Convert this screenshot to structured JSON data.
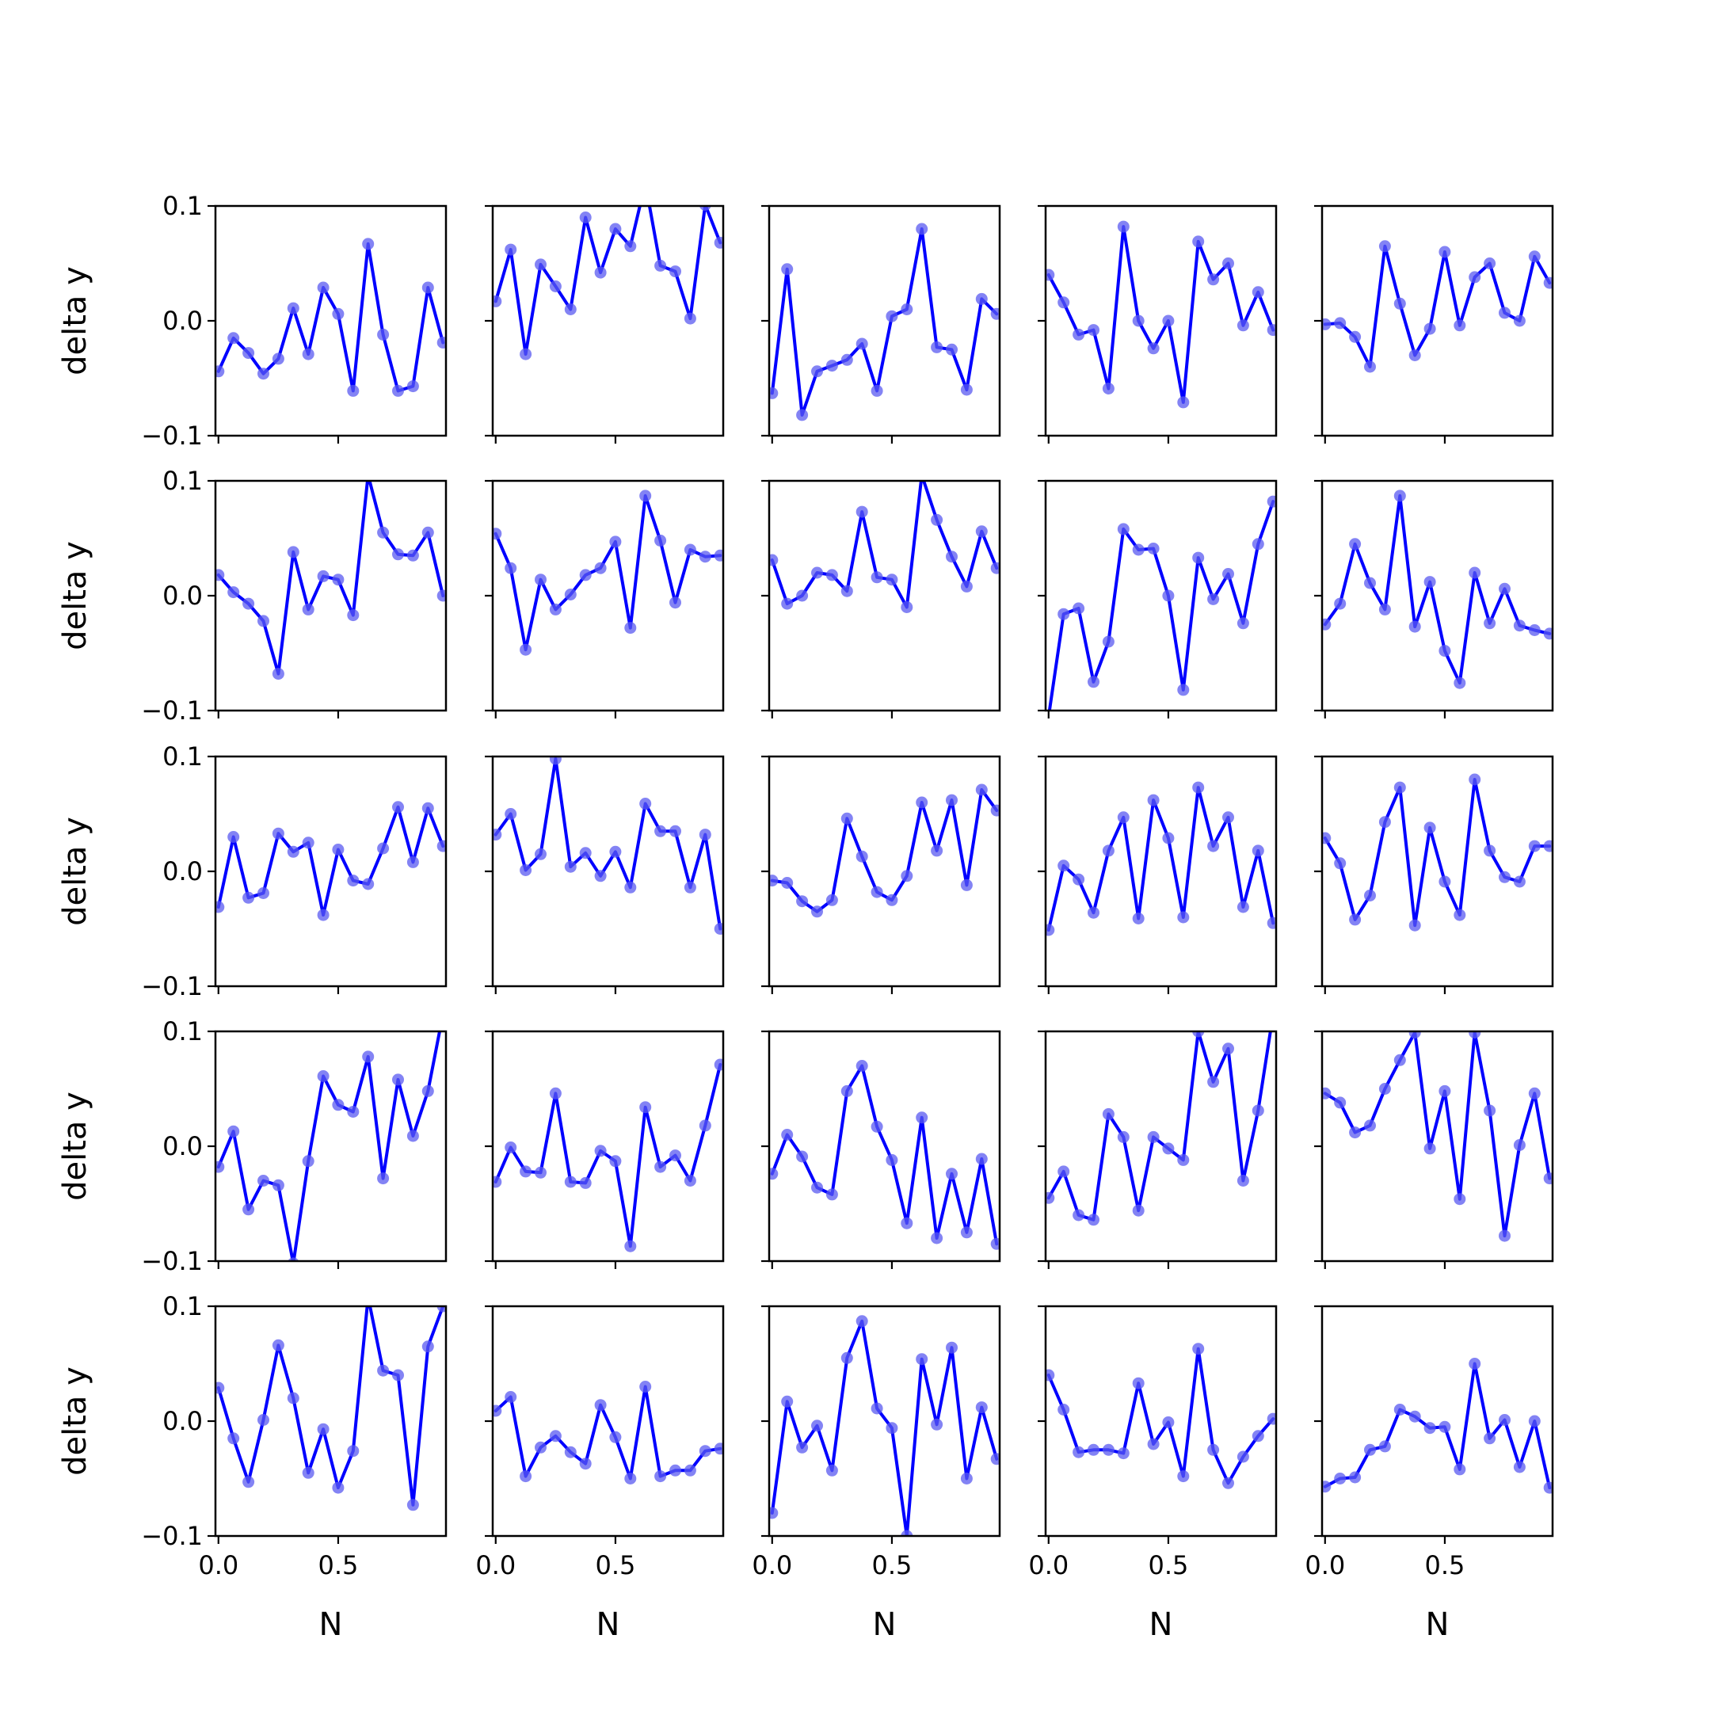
{
  "chart_data": {
    "type": "line",
    "layout": "5x5 grid of subplots, shared x and y axes",
    "series_color": "#0000ff",
    "marker_color": "#5a5af0",
    "grid": false,
    "ylabel": "delta y",
    "xlabel": "N",
    "ylim": [
      -0.1,
      0.1
    ],
    "yticks": [
      -0.1,
      0.0,
      0.1
    ],
    "ytick_labels": [
      "−0.1",
      "0.0",
      "0.1"
    ],
    "xlim": [
      -0.0125,
      0.95
    ],
    "xticks": [
      0.0,
      0.5
    ],
    "xtick_labels": [
      "0.0",
      "0.5"
    ],
    "x": [
      0.0,
      0.0625,
      0.125,
      0.1875,
      0.25,
      0.3125,
      0.375,
      0.4375,
      0.5,
      0.5625,
      0.625,
      0.6875,
      0.75,
      0.8125,
      0.875,
      0.9375
    ],
    "panels": [
      [
        -0.044,
        -0.015,
        -0.028,
        -0.046,
        -0.033,
        0.011,
        -0.029,
        0.029,
        0.006,
        -0.061,
        0.067,
        -0.012,
        -0.061,
        -0.057,
        0.029,
        -0.019
      ],
      [
        0.017,
        0.062,
        -0.029,
        0.049,
        0.03,
        0.01,
        0.09,
        0.042,
        0.08,
        0.065,
        0.12,
        0.048,
        0.043,
        0.002,
        0.101,
        0.068
      ],
      [
        -0.063,
        0.045,
        -0.082,
        -0.044,
        -0.039,
        -0.034,
        -0.02,
        -0.061,
        0.004,
        0.01,
        0.08,
        -0.023,
        -0.025,
        -0.06,
        0.019,
        0.006
      ],
      [
        0.04,
        0.016,
        -0.012,
        -0.008,
        -0.059,
        0.082,
        0.0,
        -0.024,
        0.0,
        -0.071,
        0.069,
        0.036,
        0.05,
        -0.004,
        0.025,
        -0.008
      ],
      [
        -0.003,
        -0.002,
        -0.014,
        -0.04,
        0.065,
        0.015,
        -0.03,
        -0.007,
        0.06,
        -0.004,
        0.038,
        0.05,
        0.007,
        0.0,
        0.056,
        0.033
      ],
      [
        0.018,
        0.003,
        -0.007,
        -0.022,
        -0.068,
        0.038,
        -0.012,
        0.017,
        0.014,
        -0.017,
        0.105,
        0.055,
        0.036,
        0.035,
        0.055,
        0.0
      ],
      [
        0.054,
        0.024,
        -0.047,
        0.014,
        -0.012,
        0.001,
        0.018,
        0.024,
        0.047,
        -0.028,
        0.087,
        0.048,
        -0.006,
        0.04,
        0.034,
        0.035
      ],
      [
        0.031,
        -0.007,
        0.0,
        0.02,
        0.018,
        0.004,
        0.073,
        0.016,
        0.014,
        -0.01,
        0.105,
        0.066,
        0.034,
        0.008,
        0.056,
        0.024
      ],
      [
        -0.105,
        -0.016,
        -0.011,
        -0.075,
        -0.04,
        0.058,
        0.04,
        0.041,
        0.0,
        -0.082,
        0.033,
        -0.003,
        0.019,
        -0.024,
        0.045,
        0.082
      ],
      [
        -0.025,
        -0.007,
        0.045,
        0.011,
        -0.012,
        0.087,
        -0.027,
        0.012,
        -0.048,
        -0.076,
        0.02,
        -0.024,
        0.006,
        -0.026,
        -0.03,
        -0.033
      ],
      [
        -0.031,
        0.03,
        -0.023,
        -0.019,
        0.033,
        0.017,
        0.025,
        -0.038,
        0.019,
        -0.008,
        -0.011,
        0.02,
        0.056,
        0.008,
        0.055,
        0.022
      ],
      [
        0.032,
        0.05,
        0.001,
        0.015,
        0.098,
        0.004,
        0.016,
        -0.004,
        0.017,
        -0.014,
        0.059,
        0.035,
        0.035,
        -0.014,
        0.032,
        -0.05
      ],
      [
        -0.008,
        -0.01,
        -0.026,
        -0.035,
        -0.025,
        0.046,
        0.013,
        -0.018,
        -0.025,
        -0.004,
        0.06,
        0.018,
        0.062,
        -0.012,
        0.071,
        0.053
      ],
      [
        -0.051,
        0.005,
        -0.007,
        -0.036,
        0.018,
        0.047,
        -0.041,
        0.062,
        0.029,
        -0.04,
        0.073,
        0.022,
        0.047,
        -0.031,
        0.018,
        -0.045
      ],
      [
        0.029,
        0.007,
        -0.042,
        -0.021,
        0.043,
        0.073,
        -0.047,
        0.038,
        -0.009,
        -0.038,
        0.08,
        0.018,
        -0.005,
        -0.009,
        0.022,
        0.022
      ],
      [
        -0.018,
        0.013,
        -0.055,
        -0.03,
        -0.034,
        -0.102,
        -0.013,
        0.061,
        0.036,
        0.03,
        0.078,
        -0.028,
        0.058,
        0.009,
        0.048,
        0.115
      ],
      [
        -0.031,
        -0.001,
        -0.022,
        -0.023,
        0.046,
        -0.031,
        -0.032,
        -0.004,
        -0.013,
        -0.087,
        0.034,
        -0.018,
        -0.008,
        -0.03,
        0.018,
        0.071
      ],
      [
        -0.024,
        0.01,
        -0.009,
        -0.036,
        -0.042,
        0.048,
        0.07,
        0.017,
        -0.012,
        -0.067,
        0.025,
        -0.08,
        -0.024,
        -0.075,
        -0.011,
        -0.085
      ],
      [
        -0.045,
        -0.022,
        -0.06,
        -0.064,
        0.028,
        0.008,
        -0.056,
        0.008,
        -0.002,
        -0.012,
        0.1,
        0.056,
        0.085,
        -0.03,
        0.031,
        0.115
      ],
      [
        0.046,
        0.038,
        0.012,
        0.018,
        0.05,
        0.075,
        0.099,
        -0.002,
        0.048,
        -0.046,
        0.099,
        0.031,
        -0.078,
        0.001,
        0.046,
        -0.028
      ],
      [
        0.029,
        -0.015,
        -0.053,
        0.001,
        0.066,
        0.02,
        -0.045,
        -0.007,
        -0.058,
        -0.026,
        0.108,
        0.044,
        0.04,
        -0.073,
        0.065,
        0.1
      ],
      [
        0.009,
        0.021,
        -0.048,
        -0.023,
        -0.013,
        -0.027,
        -0.037,
        0.014,
        -0.014,
        -0.05,
        0.03,
        -0.048,
        -0.043,
        -0.043,
        -0.026,
        -0.024
      ],
      [
        -0.08,
        0.017,
        -0.023,
        -0.004,
        -0.043,
        0.055,
        0.087,
        0.011,
        -0.006,
        -0.1,
        0.054,
        -0.003,
        0.064,
        -0.05,
        0.012,
        -0.033
      ],
      [
        0.04,
        0.01,
        -0.027,
        -0.025,
        -0.025,
        -0.028,
        0.033,
        -0.02,
        -0.001,
        -0.048,
        0.063,
        -0.025,
        -0.054,
        -0.031,
        -0.013,
        0.002
      ],
      [
        -0.057,
        -0.05,
        -0.049,
        -0.025,
        -0.022,
        0.01,
        0.004,
        -0.006,
        -0.005,
        -0.042,
        0.05,
        -0.015,
        0.001,
        -0.04,
        0.0,
        -0.058
      ]
    ]
  }
}
